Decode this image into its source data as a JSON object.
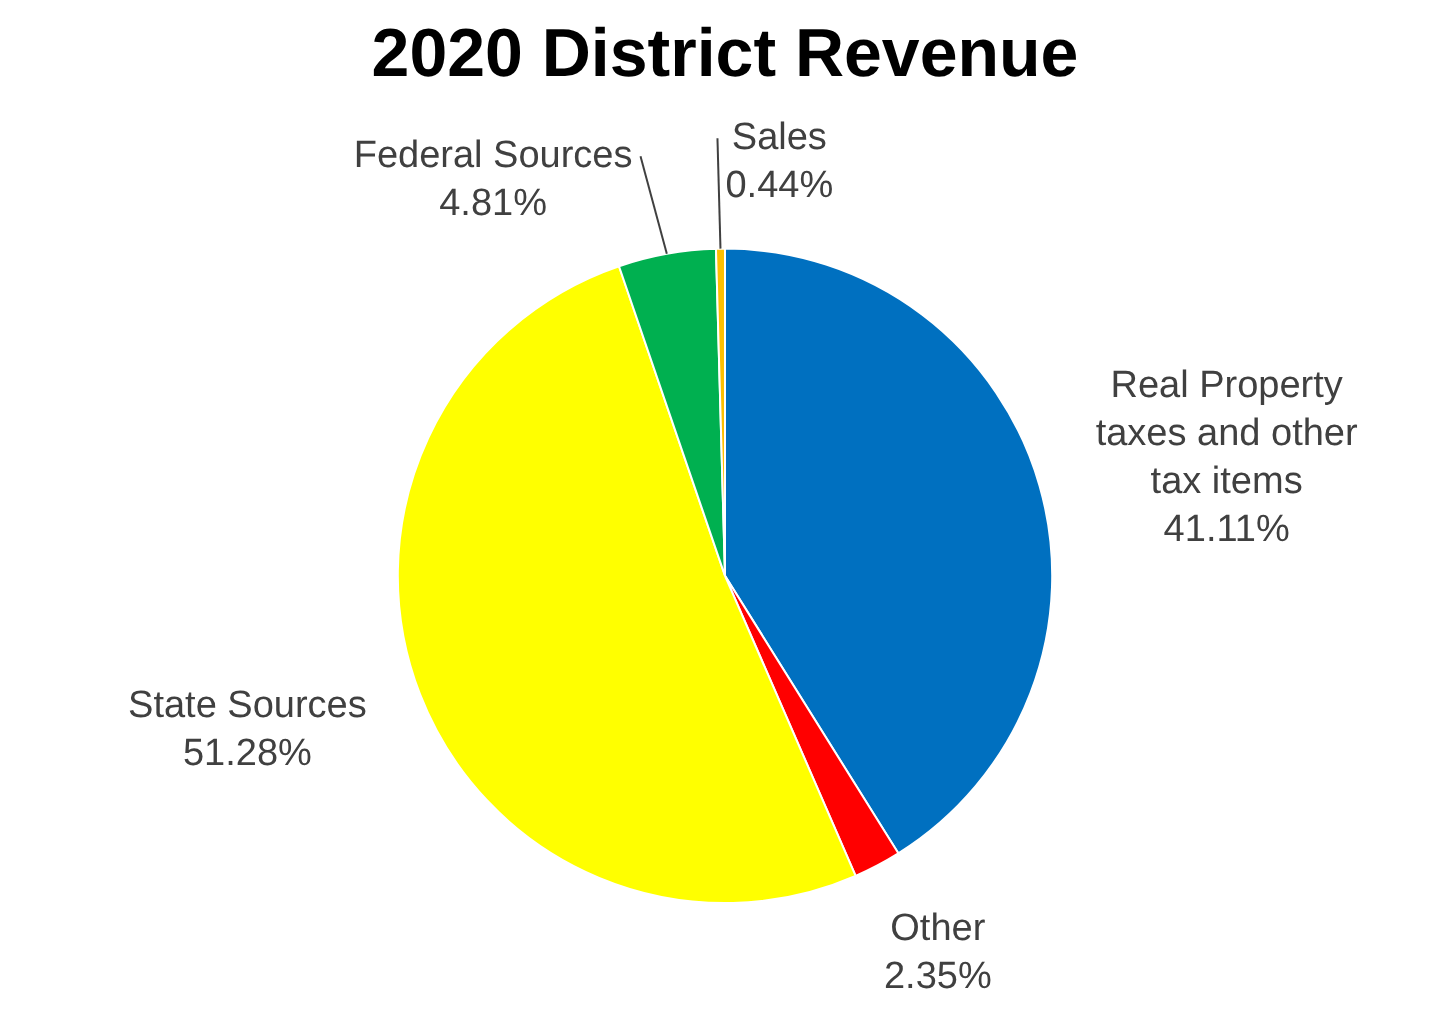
{
  "chart_data": {
    "type": "pie",
    "title": "2020 District Revenue",
    "categories": [
      "Real Property taxes and other tax items",
      "Other",
      "State Sources",
      "Federal Sources",
      "Sales"
    ],
    "values": [
      41.11,
      2.35,
      51.28,
      4.81,
      0.44
    ],
    "value_labels": [
      "41.11%",
      "2.35%",
      "51.28%",
      "4.81%",
      "0.44%"
    ],
    "colors": [
      "#0070c0",
      "#ff0000",
      "#ffff00",
      "#00b050",
      "#ffc000"
    ],
    "legend": false
  }
}
